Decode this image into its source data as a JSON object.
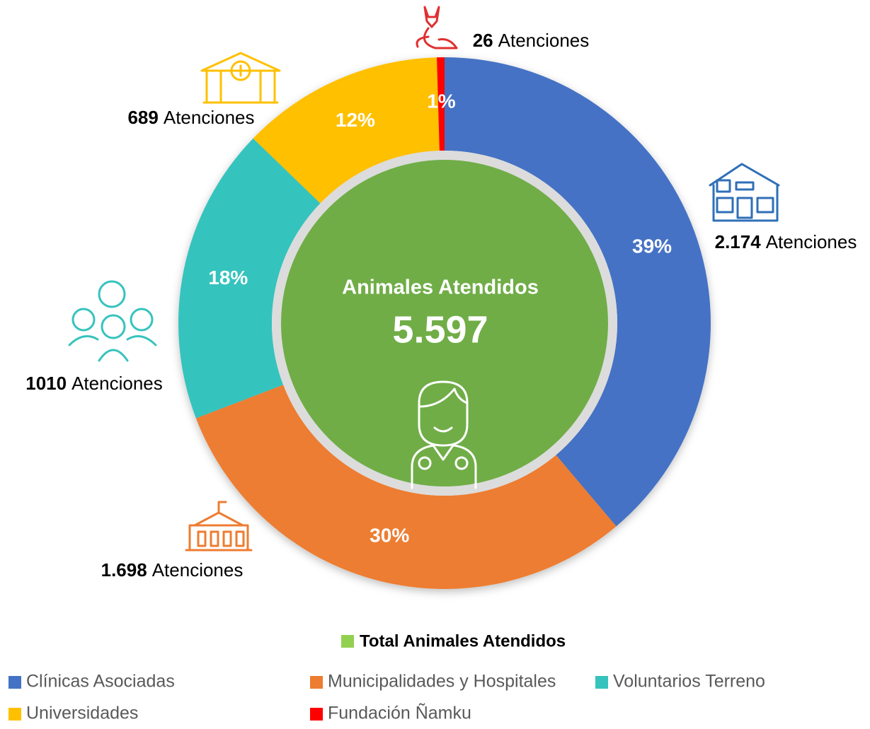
{
  "chart_data": {
    "type": "donut",
    "center_title": "Animales Atendidos",
    "total": 5597,
    "total_label": "5.597",
    "center_color": "#70ad47",
    "categories": [
      "Clínicas Asociadas",
      "Municipalidades y Hospitales",
      "Voluntarios Terreno",
      "Universidades",
      "Fundación Ñamku"
    ],
    "values": [
      2174,
      1698,
      1010,
      689,
      26
    ],
    "value_labels": [
      "2.174",
      "1.698",
      "1010",
      "689",
      "26"
    ],
    "percent_labels": [
      "39%",
      "30%",
      "18%",
      "12%",
      "1%"
    ],
    "unit_label": "Atenciones",
    "colors": [
      "#4472c4",
      "#ed7d31",
      "#36c3be",
      "#ffc000",
      "#ff0000"
    ],
    "total_legend": {
      "name": "Total Animales Atendidos",
      "color": "#92d050"
    }
  }
}
